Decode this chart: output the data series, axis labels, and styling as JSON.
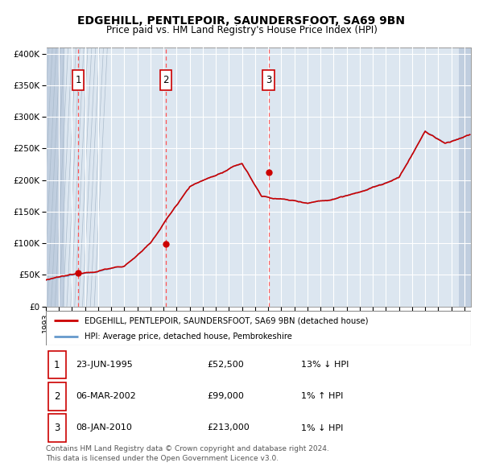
{
  "title": "EDGEHILL, PENTLEPOIR, SAUNDERSFOOT, SA69 9BN",
  "subtitle": "Price paid vs. HM Land Registry's House Price Index (HPI)",
  "plot_bg_color": "#dce6f0",
  "hatch_color": "#c0cedf",
  "grid_color": "#ffffff",
  "red_line_color": "#cc0000",
  "blue_line_color": "#6699cc",
  "marker_color": "#cc0000",
  "vline_color": "#ff5555",
  "label_box_edge": "#cc0000",
  "ytick_labels": [
    "£0",
    "£50K",
    "£100K",
    "£150K",
    "£200K",
    "£250K",
    "£300K",
    "£350K",
    "£400K"
  ],
  "ytick_values": [
    0,
    50000,
    100000,
    150000,
    200000,
    250000,
    300000,
    350000,
    400000
  ],
  "ylim": [
    0,
    410000
  ],
  "xlim_start": 1993.0,
  "xlim_end": 2025.5,
  "sale_dates": [
    1995.47,
    2002.17,
    2010.03
  ],
  "sale_prices": [
    52500,
    99000,
    213000
  ],
  "sale_labels": [
    "1",
    "2",
    "3"
  ],
  "legend_entries": [
    "EDGEHILL, PENTLEPOIR, SAUNDERSFOOT, SA69 9BN (detached house)",
    "HPI: Average price, detached house, Pembrokeshire"
  ],
  "table_rows": [
    {
      "num": "1",
      "date": "23-JUN-1995",
      "price": "£52,500",
      "hpi": "13% ↓ HPI"
    },
    {
      "num": "2",
      "date": "06-MAR-2002",
      "price": "£99,000",
      "hpi": "1% ↑ HPI"
    },
    {
      "num": "3",
      "date": "08-JAN-2010",
      "price": "£213,000",
      "hpi": "1% ↓ HPI"
    }
  ],
  "footnote1": "Contains HM Land Registry data © Crown copyright and database right 2024.",
  "footnote2": "This data is licensed under the Open Government Licence v3.0."
}
